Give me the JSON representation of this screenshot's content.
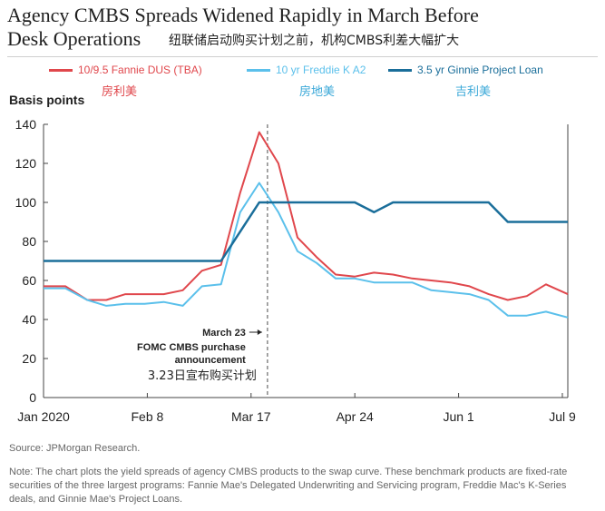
{
  "header": {
    "title_line1": "Agency CMBS Spreads Widened Rapidly in March Before",
    "title_line2": "Desk Operations",
    "title_cn": "纽联储启动购买计划之前，机构CMBS利差大幅扩大"
  },
  "legend": [
    {
      "label": "10/9.5 Fannie DUS (TBA)",
      "cn": "房利美",
      "color": "#e0474c"
    },
    {
      "label": "10 yr Freddie K A2",
      "cn": "房地美",
      "color": "#5bc0eb"
    },
    {
      "label": "3.5 yr Ginnie Project Loan",
      "cn": "吉利美",
      "color": "#1a6e9a"
    }
  ],
  "chart_data": {
    "type": "line",
    "ylabel": "Basis points",
    "ylim": [
      0,
      140
    ],
    "yticks": [
      "0",
      "20",
      "40",
      "60",
      "80",
      "100",
      "120",
      "140"
    ],
    "x_tick_labels": [
      "Jan 2020",
      "Feb 8",
      "Mar 17",
      "Apr 24",
      "Jun 1",
      "Jul 9"
    ],
    "x_tick_days": [
      0,
      38,
      76,
      114,
      152,
      190
    ],
    "x_range_days": [
      0,
      192
    ],
    "vline_day": 82,
    "annotation": {
      "line1": "March 23",
      "line2": "FOMC CMBS purchase",
      "line3": "announcement",
      "cn": "3.23日宣布购买计划"
    },
    "series": [
      {
        "name": "10/9.5 Fannie DUS (TBA)",
        "color": "#e0474c",
        "points": [
          [
            0,
            57
          ],
          [
            8,
            57
          ],
          [
            16,
            50
          ],
          [
            23,
            50
          ],
          [
            30,
            53
          ],
          [
            37,
            53
          ],
          [
            44,
            53
          ],
          [
            51,
            55
          ],
          [
            58,
            65
          ],
          [
            65,
            68
          ],
          [
            72,
            105
          ],
          [
            79,
            136
          ],
          [
            86,
            120
          ],
          [
            93,
            82
          ],
          [
            100,
            72
          ],
          [
            107,
            63
          ],
          [
            114,
            62
          ],
          [
            121,
            64
          ],
          [
            128,
            63
          ],
          [
            135,
            61
          ],
          [
            142,
            60
          ],
          [
            149,
            59
          ],
          [
            156,
            57
          ],
          [
            163,
            53
          ],
          [
            170,
            50
          ],
          [
            177,
            52
          ],
          [
            184,
            58
          ],
          [
            192,
            53
          ]
        ]
      },
      {
        "name": "10 yr Freddie K A2",
        "color": "#5bc0eb",
        "points": [
          [
            0,
            56
          ],
          [
            8,
            56
          ],
          [
            16,
            50
          ],
          [
            23,
            47
          ],
          [
            30,
            48
          ],
          [
            37,
            48
          ],
          [
            44,
            49
          ],
          [
            51,
            47
          ],
          [
            58,
            57
          ],
          [
            65,
            58
          ],
          [
            72,
            95
          ],
          [
            79,
            110
          ],
          [
            86,
            95
          ],
          [
            93,
            75
          ],
          [
            100,
            69
          ],
          [
            107,
            61
          ],
          [
            114,
            61
          ],
          [
            121,
            59
          ],
          [
            128,
            59
          ],
          [
            135,
            59
          ],
          [
            142,
            55
          ],
          [
            149,
            54
          ],
          [
            156,
            53
          ],
          [
            163,
            50
          ],
          [
            170,
            42
          ],
          [
            177,
            42
          ],
          [
            184,
            44
          ],
          [
            192,
            41
          ]
        ]
      },
      {
        "name": "3.5 yr Ginnie Project Loan",
        "color": "#1a6e9a",
        "points": [
          [
            0,
            70
          ],
          [
            65,
            70
          ],
          [
            79,
            100
          ],
          [
            114,
            100
          ],
          [
            121,
            95
          ],
          [
            128,
            100
          ],
          [
            163,
            100
          ],
          [
            170,
            90
          ],
          [
            192,
            90
          ]
        ]
      }
    ]
  },
  "footer": {
    "source": "Source: JPMorgan Research.",
    "note": "Note: The chart plots the yield spreads of agency CMBS products to the swap curve. These benchmark products are fixed-rate securities of the three largest programs: Fannie Mae's Delegated Underwriting and Servicing program, Freddie Mac's K-Series deals, and Ginnie Mae's Project Loans."
  }
}
